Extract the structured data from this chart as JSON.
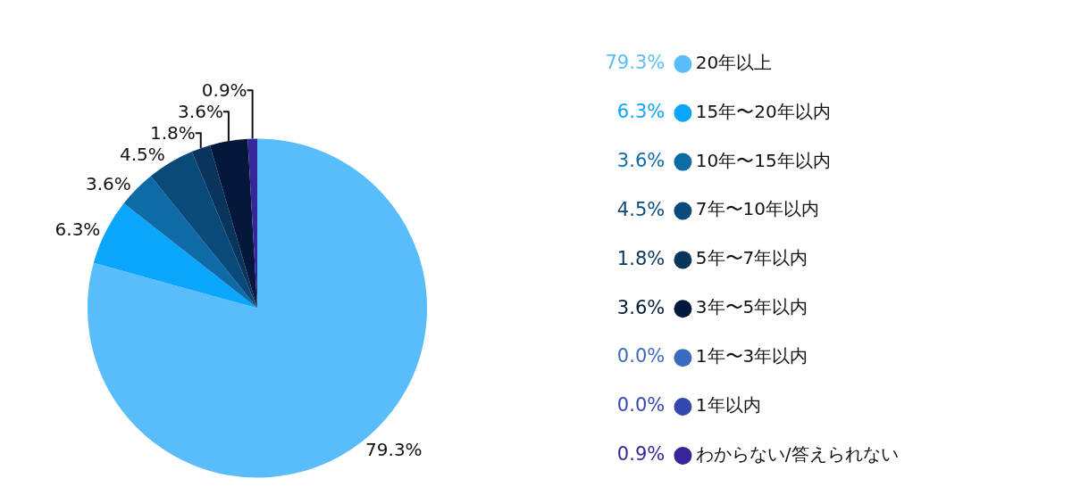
{
  "chart_data": {
    "type": "pie",
    "categories": [
      "20年以上",
      "15年〜20年以内",
      "10年〜15年以内",
      "7年〜10年以内",
      "5年〜7年以内",
      "3年〜5年以内",
      "1年〜3年以内",
      "1年以内",
      "わからない/答えられない"
    ],
    "values": [
      79.3,
      6.3,
      3.6,
      4.5,
      1.8,
      3.6,
      0.0,
      0.0,
      0.9
    ],
    "value_labels": [
      "79.3%",
      "6.3%",
      "3.6%",
      "4.5%",
      "1.8%",
      "3.6%",
      "0.0%",
      "0.0%",
      "0.9%"
    ],
    "colors": [
      "#5abdfb",
      "#0aa6fb",
      "#0f6aa8",
      "#0a4a7a",
      "#09355c",
      "#03183a",
      "#3a6bbf",
      "#3448b0",
      "#35279a"
    ],
    "legend": "right"
  }
}
